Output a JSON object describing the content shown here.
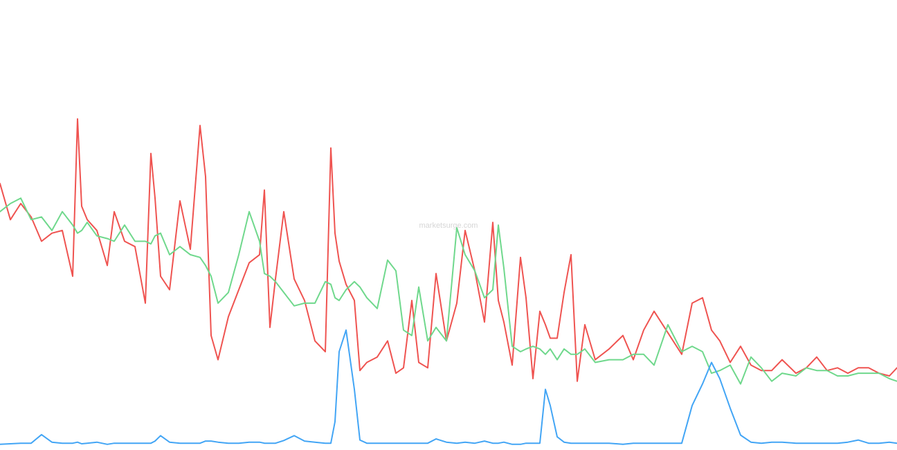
{
  "watermark": "marketsurge.com",
  "chart_data": {
    "type": "line",
    "title": "",
    "xlabel": "",
    "ylabel": "",
    "grid": false,
    "legend": "none",
    "x": [
      0,
      15,
      30,
      45,
      60,
      75,
      90,
      105,
      112,
      118,
      126,
      140,
      155,
      165,
      180,
      195,
      210,
      218,
      224,
      232,
      245,
      260,
      275,
      289,
      297,
      305,
      315,
      330,
      345,
      360,
      375,
      382,
      390,
      398,
      410,
      425,
      440,
      455,
      470,
      478,
      484,
      490,
      500,
      512,
      520,
      530,
      545,
      560,
      572,
      583,
      595,
      605,
      618,
      630,
      645,
      660,
      672,
      686,
      700,
      712,
      720,
      728,
      740,
      752,
      760,
      770,
      780,
      788,
      795,
      805,
      815,
      825,
      834,
      845,
      860,
      880,
      900,
      915,
      930,
      945,
      965,
      985,
      1000,
      1015,
      1028,
      1040,
      1055,
      1070,
      1085,
      1100,
      1115,
      1130,
      1150,
      1165,
      1180,
      1195,
      1210,
      1225,
      1240,
      1255,
      1270,
      1285,
      1296
    ],
    "series": [
      {
        "name": "",
        "color": "#ef5350",
        "values": [
          492,
          425,
          455,
          430,
          385,
          400,
          405,
          320,
          612,
          450,
          425,
          405,
          340,
          440,
          385,
          375,
          270,
          548,
          465,
          320,
          295,
          460,
          370,
          600,
          505,
          210,
          165,
          245,
          295,
          345,
          360,
          480,
          225,
          315,
          440,
          315,
          275,
          200,
          180,
          558,
          400,
          348,
          305,
          275,
          145,
          160,
          170,
          200,
          140,
          150,
          275,
          160,
          150,
          325,
          200,
          270,
          405,
          330,
          235,
          420,
          275,
          235,
          155,
          355,
          280,
          130,
          255,
          230,
          205,
          205,
          290,
          360,
          125,
          230,
          165,
          185,
          210,
          165,
          220,
          255,
          215,
          175,
          270,
          280,
          220,
          200,
          160,
          190,
          155,
          145,
          145,
          165,
          140,
          150,
          170,
          145,
          150,
          140,
          150,
          150,
          140,
          135,
          150
        ]
      },
      {
        "name": "",
        "color": "#6fd88c",
        "values": [
          440,
          455,
          465,
          425,
          430,
          405,
          440,
          415,
          400,
          405,
          420,
          395,
          390,
          385,
          415,
          385,
          385,
          380,
          395,
          400,
          360,
          375,
          360,
          355,
          340,
          320,
          270,
          290,
          360,
          440,
          385,
          325,
          320,
          310,
          290,
          265,
          270,
          270,
          310,
          305,
          280,
          275,
          295,
          310,
          300,
          280,
          260,
          350,
          330,
          220,
          210,
          300,
          200,
          225,
          200,
          410,
          360,
          330,
          280,
          295,
          415,
          335,
          190,
          180,
          185,
          190,
          185,
          175,
          185,
          165,
          185,
          175,
          175,
          185,
          160,
          165,
          165,
          175,
          175,
          155,
          230,
          180,
          190,
          180,
          140,
          145,
          155,
          120,
          170,
          150,
          125,
          140,
          135,
          150,
          145,
          145,
          135,
          135,
          140,
          140,
          140,
          130,
          125
        ]
      },
      {
        "name": "",
        "color": "#42a5f5",
        "values": [
          8,
          9,
          10,
          10,
          26,
          12,
          10,
          10,
          12,
          9,
          10,
          12,
          8,
          10,
          10,
          10,
          10,
          10,
          14,
          24,
          12,
          10,
          10,
          10,
          14,
          14,
          12,
          10,
          10,
          12,
          12,
          10,
          10,
          10,
          15,
          24,
          14,
          12,
          10,
          10,
          50,
          180,
          220,
          110,
          16,
          10,
          10,
          10,
          10,
          10,
          10,
          10,
          10,
          18,
          12,
          10,
          12,
          10,
          14,
          10,
          10,
          12,
          8,
          8,
          10,
          10,
          10,
          110,
          80,
          22,
          12,
          10,
          10,
          10,
          10,
          10,
          8,
          10,
          10,
          10,
          10,
          10,
          80,
          120,
          160,
          130,
          75,
          25,
          12,
          10,
          12,
          12,
          10,
          10,
          10,
          10,
          10,
          12,
          16,
          10,
          10,
          12,
          10
        ]
      }
    ],
    "ylim": [
      0,
      820
    ]
  }
}
